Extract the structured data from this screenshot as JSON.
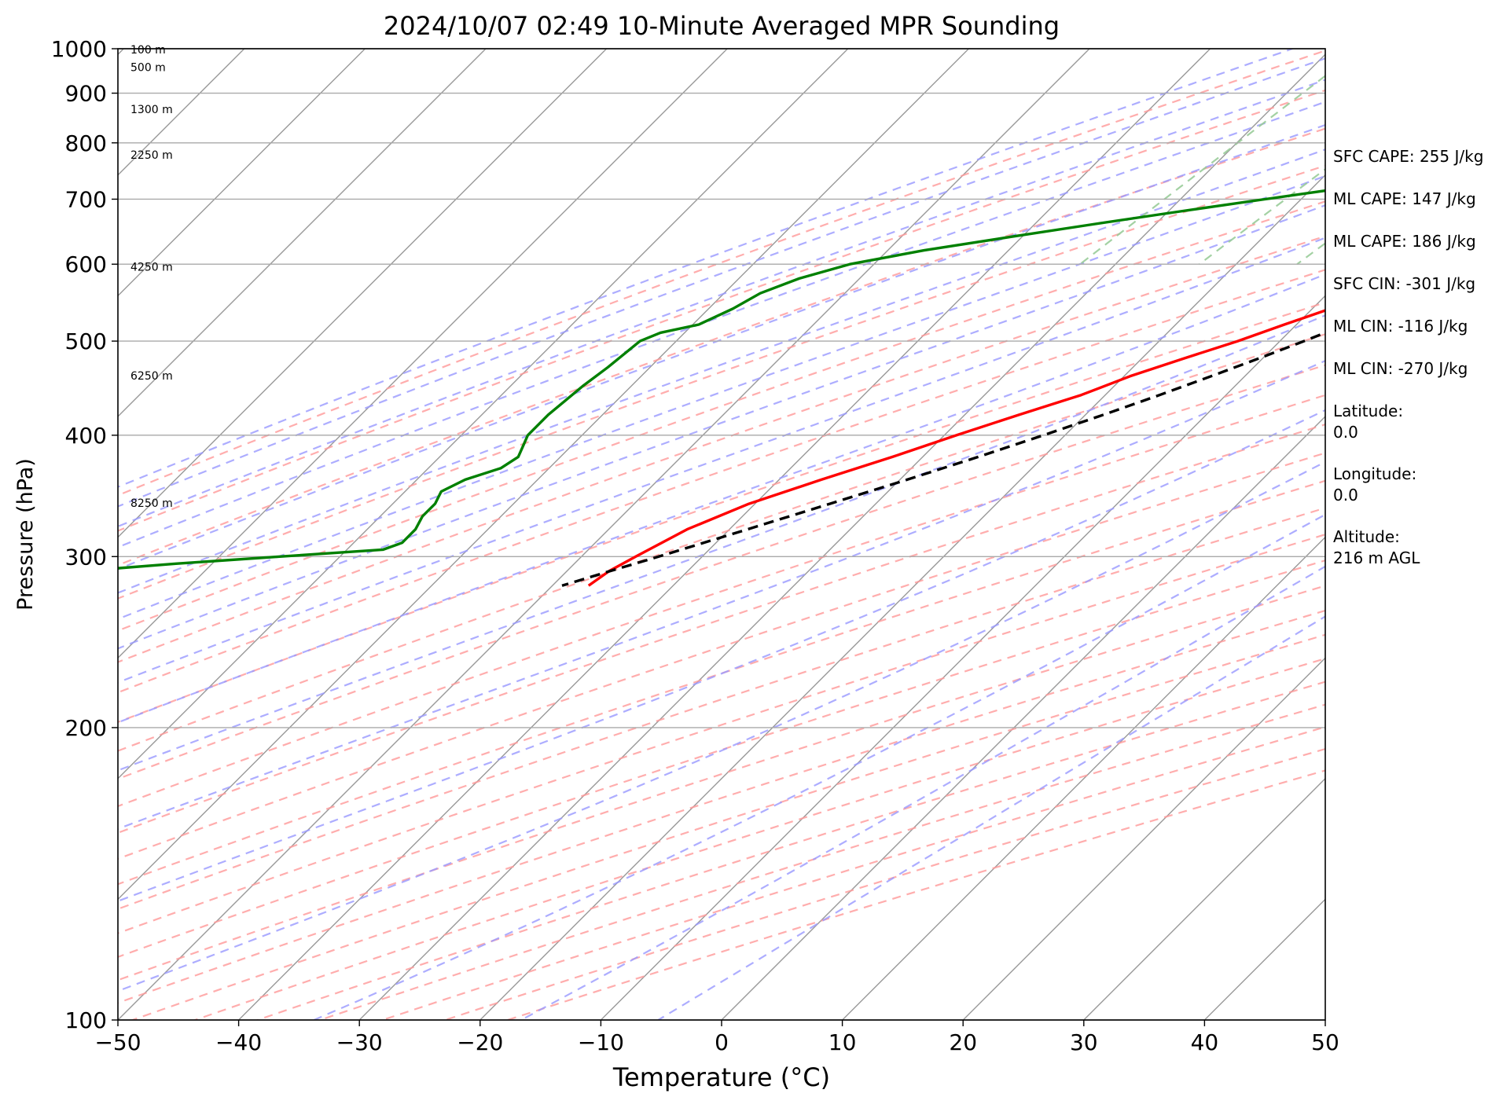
{
  "chart_data": {
    "type": "line",
    "title": "2024/10/07 02:49 10-Minute Averaged MPR Sounding",
    "xlabel": "Temperature (°C)",
    "ylabel": "Pressure (hPa)",
    "xlim": [
      -50,
      50
    ],
    "ylim": [
      1000,
      100
    ],
    "y_scale": "log",
    "skew": "skew-T",
    "grid": true,
    "x_ticks": [
      -50,
      -40,
      -30,
      -20,
      -10,
      0,
      10,
      20,
      30,
      40,
      50
    ],
    "x_tick_labels": [
      "−50",
      "−40",
      "−30",
      "−20",
      "−10",
      "0",
      "10",
      "20",
      "30",
      "40",
      "50"
    ],
    "y_ticks": [
      1000,
      900,
      800,
      700,
      600,
      500,
      400,
      300,
      200,
      100
    ],
    "y_tick_labels": [
      "1000",
      "900",
      "800",
      "700",
      "600",
      "500",
      "400",
      "300",
      "200",
      "100"
    ],
    "height_labels": [
      {
        "p": 996,
        "text": "100 m"
      },
      {
        "p": 955,
        "text": "500 m"
      },
      {
        "p": 865,
        "text": "1300 m"
      },
      {
        "p": 776,
        "text": "2250 m"
      },
      {
        "p": 595,
        "text": "4250 m"
      },
      {
        "p": 460,
        "text": "6250 m"
      },
      {
        "p": 340,
        "text": "8250 m"
      }
    ],
    "series": [
      {
        "role": "temperature",
        "color": "#ff0000",
        "p": [
          995,
          970,
          960,
          950,
          930,
          910,
          890,
          870,
          850,
          835,
          820,
          800,
          780,
          760,
          740,
          720,
          700,
          690,
          680,
          660,
          640,
          620,
          600,
          580,
          560,
          540,
          520,
          500,
          480,
          460,
          440,
          420,
          400,
          380,
          360,
          340,
          320,
          300,
          290,
          280
        ],
        "t": [
          23.0,
          26.5,
          26.6,
          26.0,
          24.5,
          22.0,
          19.5,
          17.0,
          16.5,
          15.0,
          13.5,
          12.8,
          11.5,
          10.5,
          9.3,
          8.5,
          7.5,
          7.0,
          5.8,
          3.8,
          1.5,
          -0.5,
          -2.5,
          -4.2,
          -6.3,
          -8.5,
          -11.0,
          -13.5,
          -16.5,
          -19.5,
          -22.0,
          -25.5,
          -29.0,
          -32.5,
          -36.5,
          -40.5,
          -43.5,
          -45.5,
          -46.5,
          -47.0
        ]
      },
      {
        "role": "dewpoint",
        "color": "#008000",
        "p": [
          995,
          985,
          975,
          960,
          950,
          940,
          925,
          910,
          895,
          880,
          865,
          850,
          835,
          820,
          800,
          780,
          760,
          740,
          720,
          700,
          680,
          660,
          640,
          620,
          600,
          580,
          560,
          540,
          520,
          510,
          500,
          470,
          450,
          420,
          400,
          390,
          380,
          370,
          360,
          350,
          340,
          330,
          320,
          310,
          305,
          300,
          295,
          290,
          285
        ],
        "t": [
          15.5,
          13.5,
          12.0,
          11.0,
          9.0,
          9.5,
          8.5,
          8.0,
          7.0,
          6.0,
          5.5,
          4.5,
          4.0,
          3.5,
          3.8,
          -0.3,
          -5.5,
          -11.0,
          -17.0,
          -23.0,
          -29.0,
          -35.0,
          -41.0,
          -47.0,
          -52.0,
          -55.0,
          -57.0,
          -58.0,
          -59.5,
          -62.0,
          -63.0,
          -63.5,
          -64.0,
          -64.5,
          -64.5,
          -64.0,
          -63.5,
          -64.0,
          -66.0,
          -67.0,
          -66.5,
          -66.5,
          -66.0,
          -66.0,
          -67.0,
          -75.0,
          -83.0,
          -90.0,
          -92.0
        ]
      },
      {
        "role": "parcel",
        "color": "#000000",
        "p": [
          995,
          950,
          920,
          900,
          870,
          850,
          820,
          800,
          770,
          740,
          700,
          680,
          660,
          640,
          620,
          600,
          580,
          560,
          540,
          520,
          500,
          480,
          460,
          440,
          420,
          400,
          380,
          360,
          340,
          320,
          300,
          290,
          280
        ],
        "t": [
          23.0,
          18.5,
          16.0,
          15.0,
          14.0,
          13.2,
          12.2,
          11.4,
          10.2,
          8.9,
          7.0,
          5.9,
          4.8,
          3.6,
          2.3,
          0.9,
          -0.6,
          -2.2,
          -4.0,
          -5.9,
          -8.0,
          -10.3,
          -12.8,
          -15.5,
          -18.5,
          -21.8,
          -25.4,
          -29.4,
          -33.8,
          -38.5,
          -43.6,
          -46.4,
          -49.2
        ]
      }
    ],
    "background_lines": {
      "dry_adiabats_color": "#ff9999",
      "moist_adiabats_color": "#9999ff",
      "mixing_ratio_color": "#99cc99",
      "isotherms_color": "#999999"
    }
  },
  "stats": [
    {
      "label": "SFC CAPE: 255 J/kg"
    },
    {
      "label": "ML CAPE: 147 J/kg"
    },
    {
      "label": "ML CAPE: 186 J/kg"
    },
    {
      "label": "SFC CIN: -301 J/kg"
    },
    {
      "label": "ML CIN: -116 J/kg"
    },
    {
      "label": "ML CIN: -270 J/kg"
    }
  ],
  "location": [
    {
      "label": "Latitude:",
      "value": "0.0"
    },
    {
      "label": "Longitude:",
      "value": "0.0"
    },
    {
      "label": "Altitude:",
      "value": "216 m AGL"
    }
  ]
}
